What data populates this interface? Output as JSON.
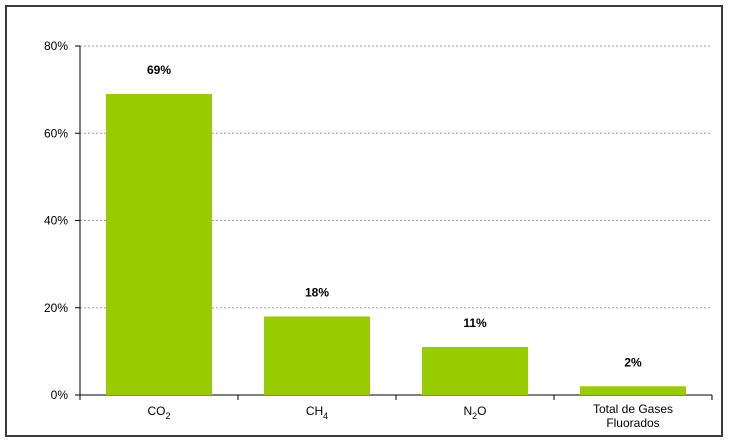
{
  "chart_data": {
    "type": "bar",
    "title": "",
    "xlabel": "",
    "ylabel": "",
    "categories": [
      "CO2",
      "CH4",
      "N2O",
      "Total de Gases Fluorados"
    ],
    "category_labels": [
      {
        "main": "CO",
        "sub": "2"
      },
      {
        "main": "CH",
        "sub": "4"
      },
      {
        "main": "N",
        "sub": "2",
        "tail": "O"
      },
      {
        "main": "Total de Gases",
        "line2": "Fluorados"
      }
    ],
    "values": [
      69,
      18,
      11,
      2
    ],
    "data_labels": [
      "69%",
      "18%",
      "11%",
      "2%"
    ],
    "ylim": [
      0,
      80
    ],
    "yticks": [
      0,
      20,
      40,
      60,
      80
    ],
    "ytick_labels": [
      "0%",
      "20%",
      "40%",
      "60%",
      "80%"
    ],
    "grid": true,
    "grid_style": "dotted",
    "legend": "none",
    "bar_color": "#99cc00",
    "grid_color": "#a0a0a0"
  }
}
